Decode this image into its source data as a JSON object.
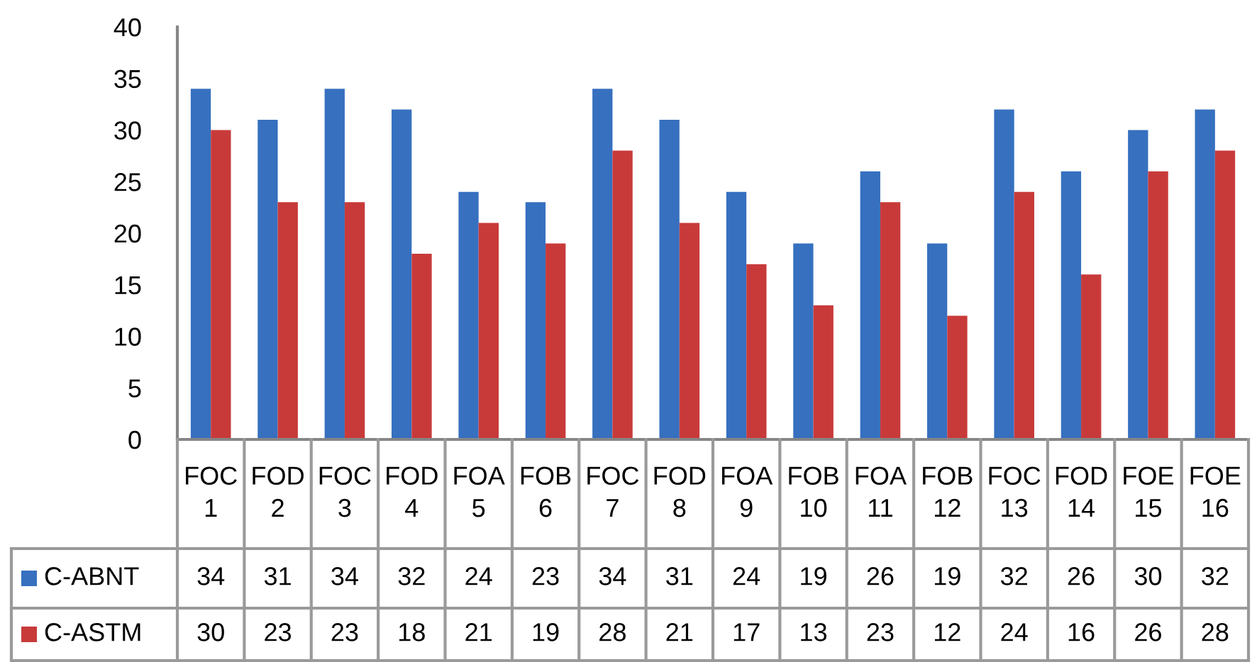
{
  "chart_data": {
    "type": "bar",
    "categories": [
      "FOC 1",
      "FOD 2",
      "FOC 3",
      "FOD 4",
      "FOA 5",
      "FOB 6",
      "FOC 7",
      "FOD 8",
      "FOA 9",
      "FOB 10",
      "FOA 11",
      "FOB 12",
      "FOC 13",
      "FOD 14",
      "FOE 15",
      "FOE 16"
    ],
    "series": [
      {
        "name": "C-ABNT",
        "color": "#3670bf",
        "values": [
          34,
          31,
          34,
          32,
          24,
          23,
          34,
          31,
          24,
          19,
          26,
          19,
          32,
          26,
          30,
          32
        ]
      },
      {
        "name": "C-ASTM",
        "color": "#c83a3a",
        "values": [
          30,
          23,
          23,
          18,
          21,
          19,
          28,
          21,
          17,
          13,
          23,
          12,
          24,
          16,
          26,
          28
        ]
      }
    ],
    "ylim": [
      0,
      40
    ],
    "yticks": [
      0,
      5,
      10,
      15,
      20,
      25,
      30,
      35,
      40
    ],
    "data_labels": true,
    "legend": "bottom left"
  }
}
